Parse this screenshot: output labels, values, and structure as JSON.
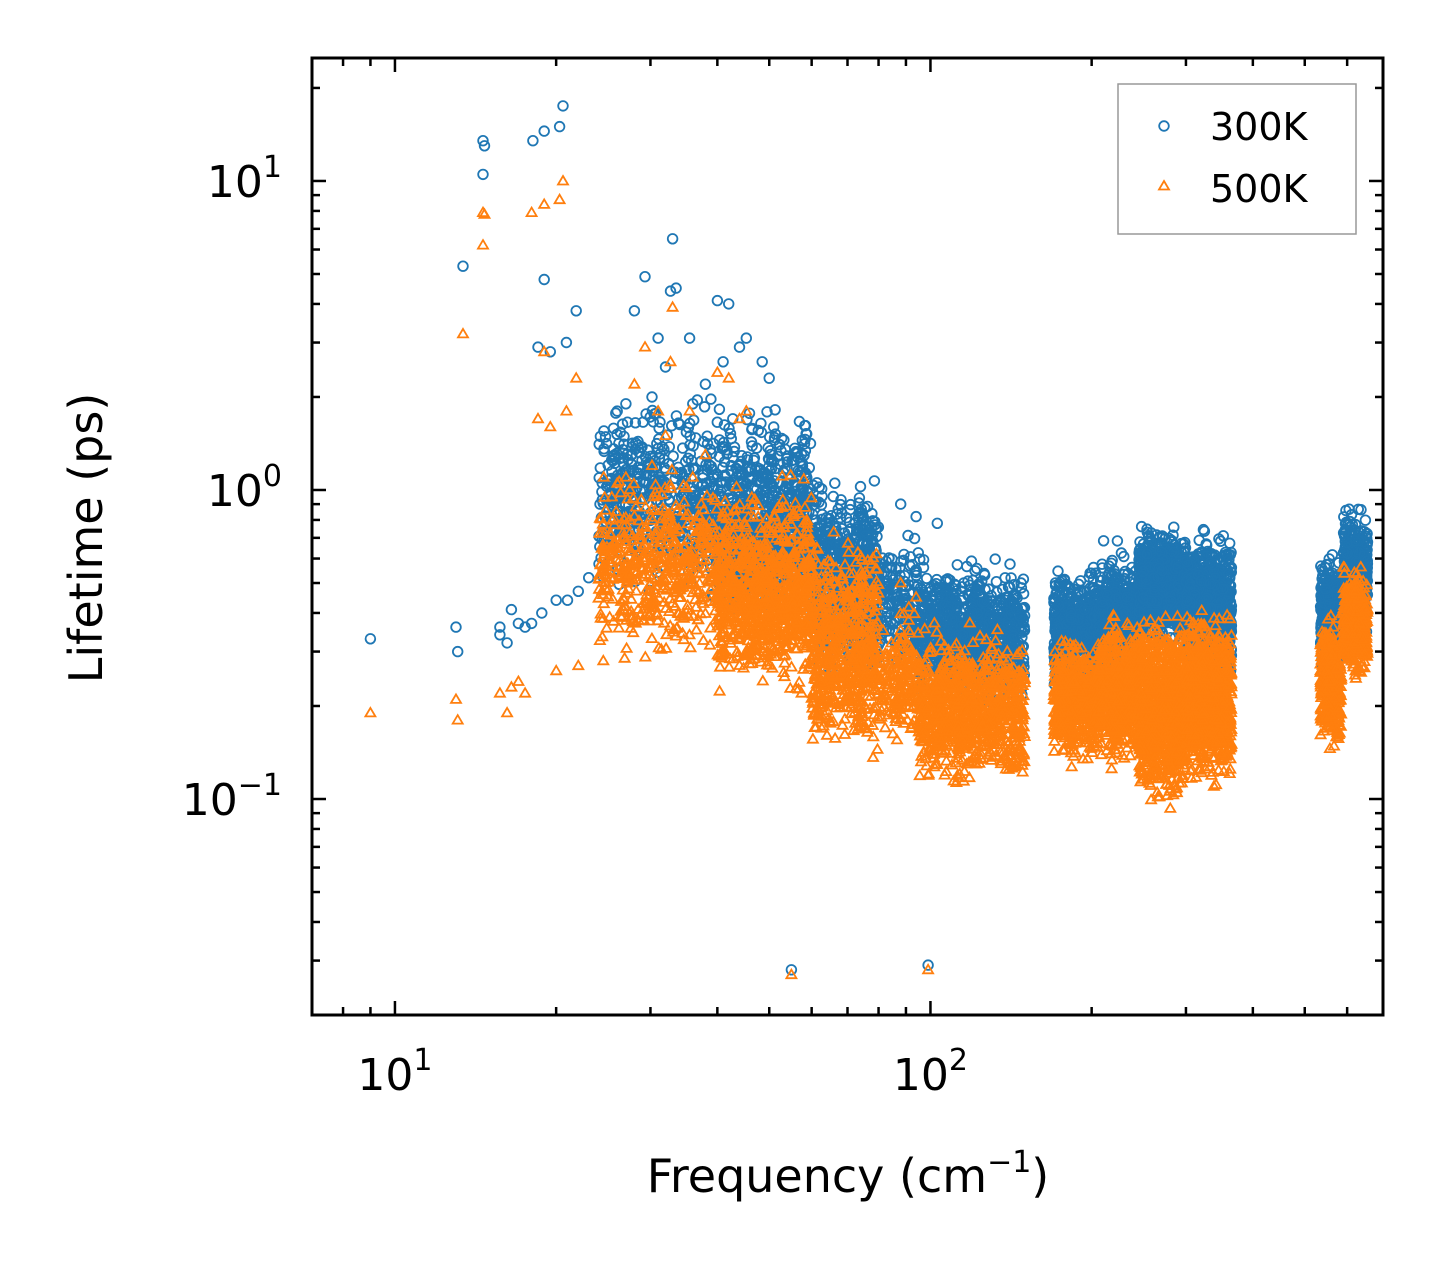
{
  "chart_data": {
    "type": "scatter",
    "xscale": "log",
    "yscale": "log",
    "xlim": [
      7,
      700
    ],
    "ylim": [
      0.02,
      25
    ],
    "xlabel": "Frequency (cm⁻¹)",
    "ylabel": "Lifetime (ps)",
    "x_ticks": [
      {
        "base": "10",
        "exp": "1"
      },
      {
        "base": "10",
        "exp": "2"
      }
    ],
    "y_ticks": [
      {
        "base": "10",
        "exp": "−1"
      },
      {
        "base": "10",
        "exp": "0"
      },
      {
        "base": "10",
        "exp": "1"
      }
    ],
    "legend_position": "top-right",
    "series": [
      {
        "name": "300K",
        "marker": "circle",
        "color": "#1f77b4",
        "points": [
          [
            9.0,
            0.33
          ],
          [
            13.0,
            0.36
          ],
          [
            13.1,
            0.3
          ],
          [
            13.4,
            5.3
          ],
          [
            14.6,
            13.5
          ],
          [
            14.7,
            13.0
          ],
          [
            14.6,
            10.5
          ],
          [
            15.7,
            0.36
          ],
          [
            15.7,
            0.34
          ],
          [
            16.2,
            0.32
          ],
          [
            16.5,
            0.41
          ],
          [
            17.0,
            0.37
          ],
          [
            17.5,
            0.36
          ],
          [
            18.0,
            0.37
          ],
          [
            18.1,
            13.5
          ],
          [
            18.5,
            2.9
          ],
          [
            18.8,
            0.4
          ],
          [
            19.0,
            14.5
          ],
          [
            19.0,
            4.8
          ],
          [
            19.5,
            2.8
          ],
          [
            20.0,
            0.44
          ],
          [
            20.3,
            15.0
          ],
          [
            20.6,
            17.5
          ],
          [
            20.9,
            3.0
          ],
          [
            21.0,
            0.44
          ],
          [
            21.8,
            3.8
          ],
          [
            22.0,
            0.47
          ],
          [
            23.0,
            0.52
          ],
          [
            24.5,
            0.55
          ],
          [
            26.0,
            1.8
          ],
          [
            27.0,
            1.9
          ],
          [
            28.0,
            3.8
          ],
          [
            29.3,
            4.9
          ],
          [
            30.2,
            2.0
          ],
          [
            31.0,
            3.1
          ],
          [
            32.0,
            2.5
          ],
          [
            32.7,
            4.4
          ],
          [
            33.5,
            4.5
          ],
          [
            33.0,
            6.5
          ],
          [
            35.5,
            3.1
          ],
          [
            36.0,
            1.9
          ],
          [
            38.0,
            2.2
          ],
          [
            40.0,
            4.1
          ],
          [
            41.0,
            2.6
          ],
          [
            42.0,
            4.0
          ],
          [
            44.0,
            2.9
          ],
          [
            45.3,
            3.1
          ],
          [
            48.5,
            2.6
          ],
          [
            50.0,
            2.3
          ],
          [
            55.0,
            0.028
          ],
          [
            99.0,
            0.029
          ],
          [
            88.0,
            0.9
          ],
          [
            94.0,
            0.82
          ],
          [
            103.0,
            0.78
          ]
        ],
        "clusters": [
          {
            "x": [
              24.0,
              60.0
            ],
            "y": [
              0.4,
              2.2
            ],
            "n": 900
          },
          {
            "x": [
              40.0,
              80.0
            ],
            "y": [
              0.35,
              1.2
            ],
            "n": 800
          },
          {
            "x": [
              60.0,
              95.0
            ],
            "y": [
              0.22,
              0.8
            ],
            "n": 500
          },
          {
            "x": [
              95.0,
              150.0
            ],
            "y": [
              0.18,
              0.65
            ],
            "n": 900
          },
          {
            "x": [
              170.0,
              205.0
            ],
            "y": [
              0.2,
              0.6
            ],
            "n": 500
          },
          {
            "x": [
              205.0,
              245.0
            ],
            "y": [
              0.2,
              0.7
            ],
            "n": 600
          },
          {
            "x": [
              245.0,
              300.0
            ],
            "y": [
              0.3,
              0.8
            ],
            "n": 900
          },
          {
            "x": [
              300.0,
              365.0
            ],
            "y": [
              0.2,
              0.8
            ],
            "n": 900
          },
          {
            "x": [
              535.0,
              585.0
            ],
            "y": [
              0.22,
              0.68
            ],
            "n": 350
          },
          {
            "x": [
              590.0,
              655.0
            ],
            "y": [
              0.3,
              0.98
            ],
            "n": 400
          }
        ]
      },
      {
        "name": "500K",
        "marker": "triangle",
        "color": "#ff7f0e",
        "points": [
          [
            9.0,
            0.19
          ],
          [
            13.0,
            0.21
          ],
          [
            13.1,
            0.18
          ],
          [
            13.4,
            3.2
          ],
          [
            14.6,
            7.9
          ],
          [
            14.7,
            7.8
          ],
          [
            14.6,
            6.2
          ],
          [
            15.7,
            0.22
          ],
          [
            16.2,
            0.19
          ],
          [
            16.5,
            0.23
          ],
          [
            17.0,
            0.24
          ],
          [
            17.5,
            0.22
          ],
          [
            18.0,
            7.9
          ],
          [
            18.5,
            1.7
          ],
          [
            19.0,
            8.4
          ],
          [
            19.0,
            2.8
          ],
          [
            19.5,
            1.6
          ],
          [
            20.0,
            0.26
          ],
          [
            20.3,
            8.7
          ],
          [
            20.6,
            10.0
          ],
          [
            20.9,
            1.8
          ],
          [
            21.8,
            2.3
          ],
          [
            22.0,
            0.27
          ],
          [
            24.5,
            0.28
          ],
          [
            26.0,
            1.05
          ],
          [
            27.0,
            1.1
          ],
          [
            28.0,
            2.2
          ],
          [
            29.3,
            2.9
          ],
          [
            30.2,
            1.2
          ],
          [
            31.0,
            1.8
          ],
          [
            32.0,
            1.5
          ],
          [
            32.7,
            2.6
          ],
          [
            33.0,
            3.9
          ],
          [
            35.5,
            1.8
          ],
          [
            36.0,
            1.1
          ],
          [
            38.0,
            1.3
          ],
          [
            40.0,
            2.4
          ],
          [
            42.0,
            2.3
          ],
          [
            44.0,
            1.7
          ],
          [
            45.3,
            1.8
          ],
          [
            55.0,
            0.027
          ],
          [
            99.0,
            0.028
          ],
          [
            88.0,
            0.5
          ],
          [
            94.0,
            0.45
          ]
        ],
        "clusters": [
          {
            "x": [
              24.0,
              60.0
            ],
            "y": [
              0.24,
              1.3
            ],
            "n": 900
          },
          {
            "x": [
              40.0,
              80.0
            ],
            "y": [
              0.2,
              0.8
            ],
            "n": 800
          },
          {
            "x": [
              60.0,
              95.0
            ],
            "y": [
              0.13,
              0.45
            ],
            "n": 500
          },
          {
            "x": [
              95.0,
              150.0
            ],
            "y": [
              0.1,
              0.38
            ],
            "n": 900
          },
          {
            "x": [
              170.0,
              205.0
            ],
            "y": [
              0.12,
              0.36
            ],
            "n": 500
          },
          {
            "x": [
              205.0,
              245.0
            ],
            "y": [
              0.12,
              0.42
            ],
            "n": 600
          },
          {
            "x": [
              245.0,
              300.0
            ],
            "y": [
              0.085,
              0.45
            ],
            "n": 900
          },
          {
            "x": [
              300.0,
              365.0
            ],
            "y": [
              0.1,
              0.45
            ],
            "n": 900
          },
          {
            "x": [
              535.0,
              585.0
            ],
            "y": [
              0.13,
              0.43
            ],
            "n": 350
          },
          {
            "x": [
              590.0,
              655.0
            ],
            "y": [
              0.23,
              0.6
            ],
            "n": 400
          }
        ]
      }
    ]
  }
}
